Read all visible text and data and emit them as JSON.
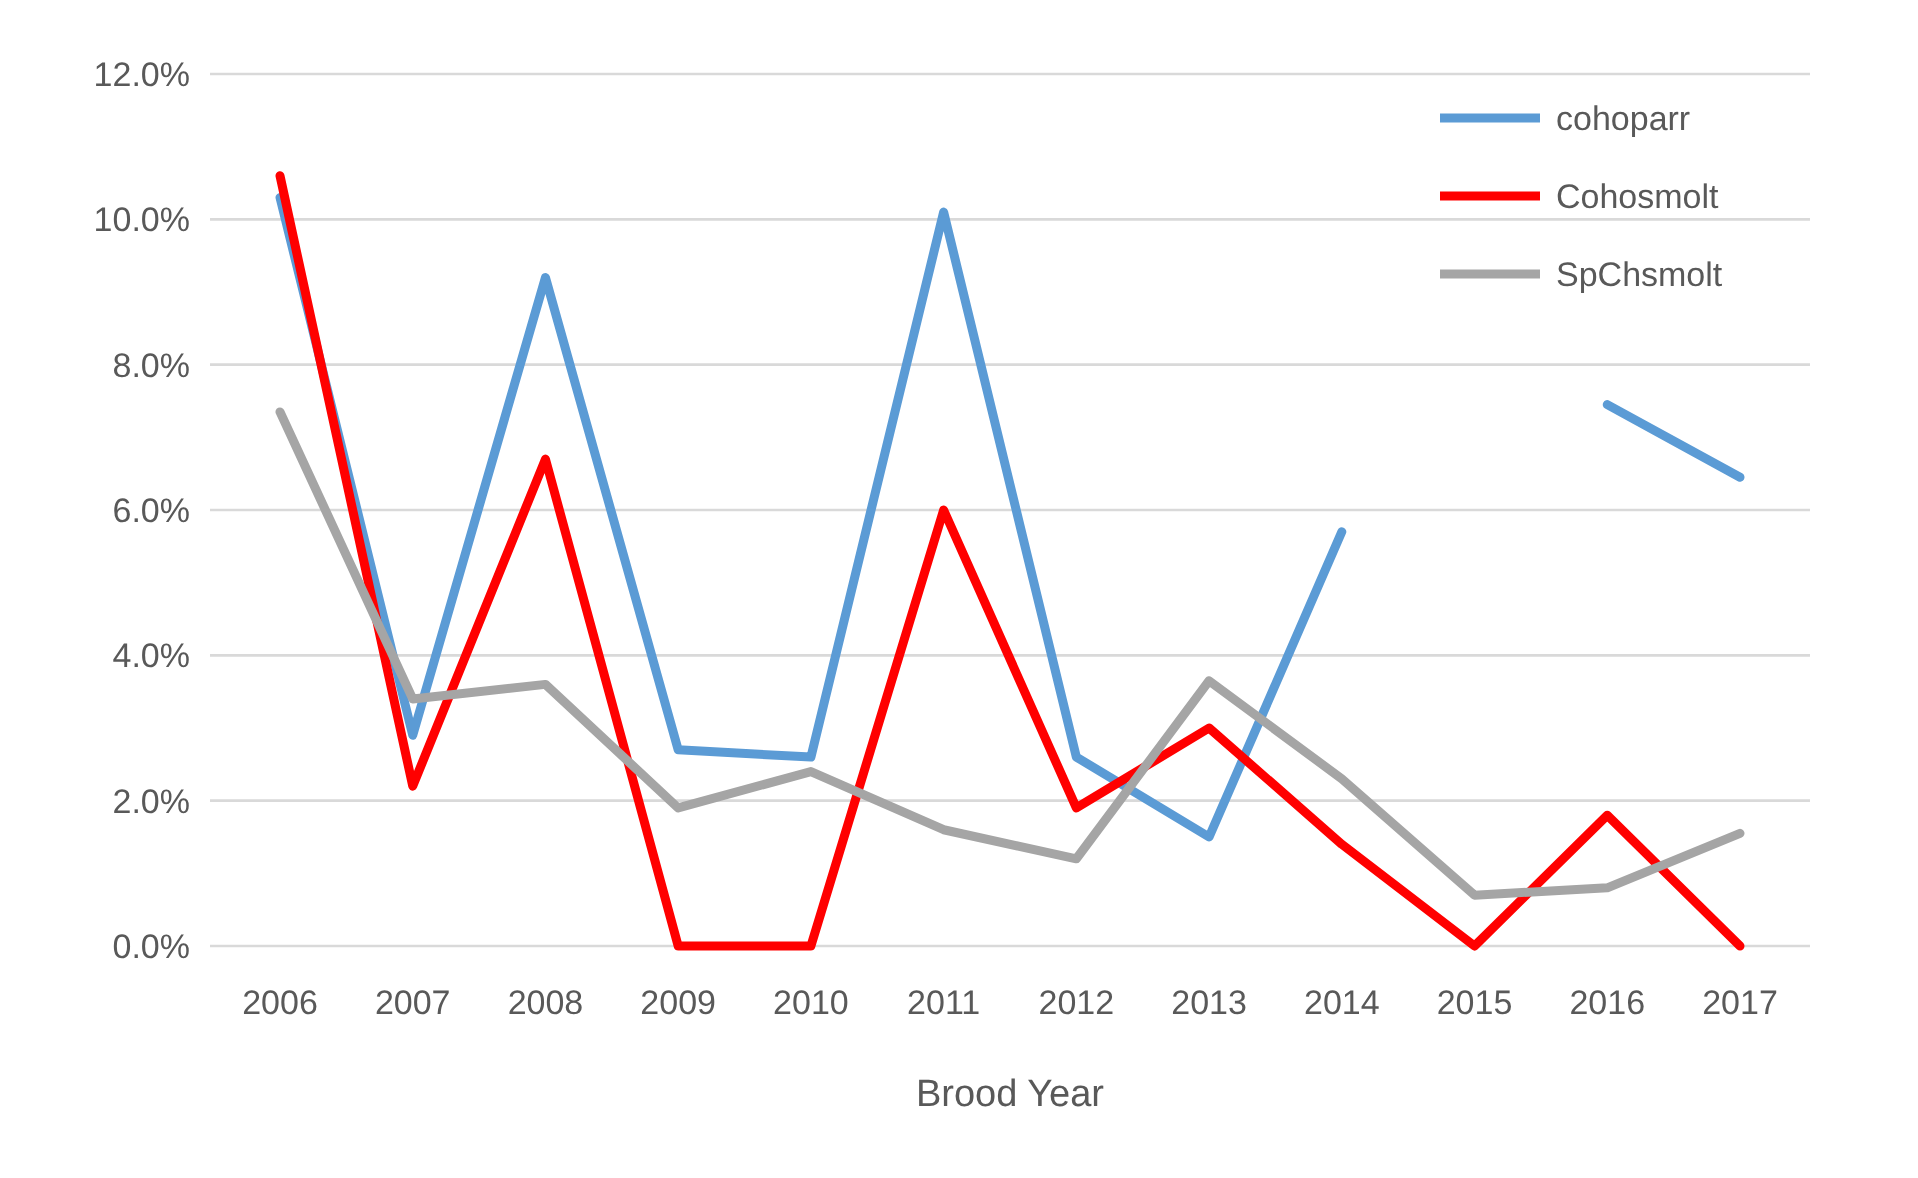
{
  "chart_data": {
    "type": "line",
    "xlabel": "Brood Year",
    "categories": [
      "2006",
      "2007",
      "2008",
      "2009",
      "2010",
      "2011",
      "2012",
      "2013",
      "2014",
      "2015",
      "2016",
      "2017"
    ],
    "series": [
      {
        "name": "cohoparr",
        "color": "#5b9bd5",
        "values": [
          10.3,
          2.9,
          9.2,
          2.7,
          2.6,
          10.1,
          2.6,
          1.5,
          5.7,
          null,
          7.45,
          6.45
        ]
      },
      {
        "name": "Cohosmolt",
        "color": "#ff0000",
        "values": [
          10.6,
          2.2,
          6.7,
          0,
          0,
          6.0,
          1.9,
          3.0,
          1.4,
          0,
          1.8,
          0
        ]
      },
      {
        "name": "SpChsmolt",
        "color": "#a5a5a5",
        "values": [
          7.35,
          3.4,
          3.6,
          1.9,
          2.4,
          1.6,
          1.2,
          3.65,
          2.3,
          0.7,
          0.8,
          1.55
        ]
      }
    ],
    "ylim": [
      0,
      12
    ],
    "yticks": [
      {
        "value": 0,
        "label": "0.0%"
      },
      {
        "value": 2,
        "label": "2.0%"
      },
      {
        "value": 4,
        "label": "4.0%"
      },
      {
        "value": 6,
        "label": "6.0%"
      },
      {
        "value": 8,
        "label": "8.0%"
      },
      {
        "value": 10,
        "label": "10.0%"
      },
      {
        "value": 12,
        "label": "12.0%"
      }
    ],
    "grid": "y",
    "legend": "top right",
    "marker": "none",
    "line_style": "solid"
  }
}
